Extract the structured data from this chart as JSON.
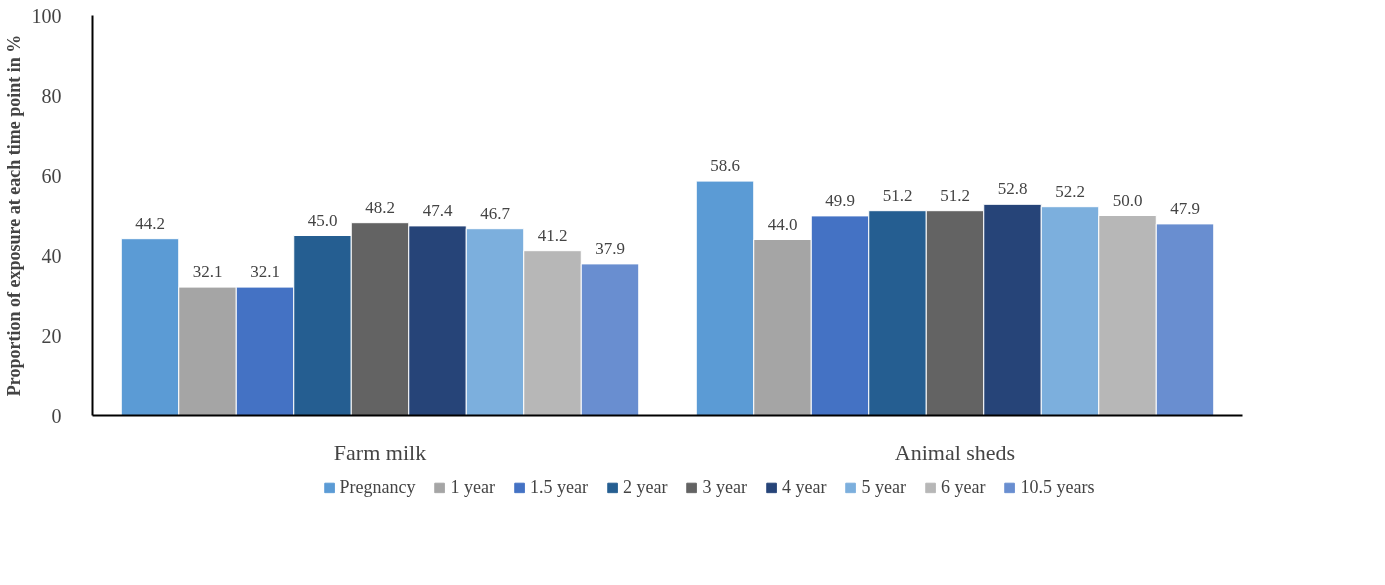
{
  "chart_data": {
    "type": "bar",
    "ylabel": "Proportion of exposure at each time point in %",
    "categories": [
      "Farm milk",
      "Animal sheds"
    ],
    "ylim": [
      0,
      100
    ],
    "yticks": [
      0,
      20,
      40,
      60,
      80,
      100
    ],
    "grid": false,
    "legend": "bottom",
    "series": [
      {
        "name": "Pregnancy",
        "color": "#5b9bd5",
        "values": [
          44.2,
          58.6
        ],
        "value_labels": [
          "44.2",
          "58.6"
        ]
      },
      {
        "name": "1 year",
        "color": "#a5a5a5",
        "values": [
          32.1,
          44.0
        ],
        "value_labels": [
          "32.1",
          "44.0"
        ]
      },
      {
        "name": "1.5 year",
        "color": "#4472c4",
        "values": [
          32.1,
          49.9
        ],
        "value_labels": [
          "32.1",
          "49.9"
        ]
      },
      {
        "name": "2 year",
        "color": "#255e91",
        "values": [
          45.0,
          51.2
        ],
        "value_labels": [
          "45.0",
          "51.2"
        ]
      },
      {
        "name": "3 year",
        "color": "#636363",
        "values": [
          48.2,
          51.2
        ],
        "value_labels": [
          "48.2",
          "51.2"
        ]
      },
      {
        "name": "4 year",
        "color": "#264478",
        "values": [
          47.4,
          52.8
        ],
        "value_labels": [
          "47.4",
          "52.8"
        ]
      },
      {
        "name": "5 year",
        "color": "#7cafdd",
        "values": [
          46.7,
          52.2
        ],
        "value_labels": [
          "46.7",
          "52.2"
        ]
      },
      {
        "name": "6 year",
        "color": "#b7b7b7",
        "values": [
          41.2,
          50.0
        ],
        "value_labels": [
          "41.2",
          "50.0"
        ]
      },
      {
        "name": "10.5 years",
        "color": "#698ed0",
        "values": [
          37.9,
          47.9
        ],
        "value_labels": [
          "37.9",
          "47.9"
        ]
      }
    ]
  }
}
